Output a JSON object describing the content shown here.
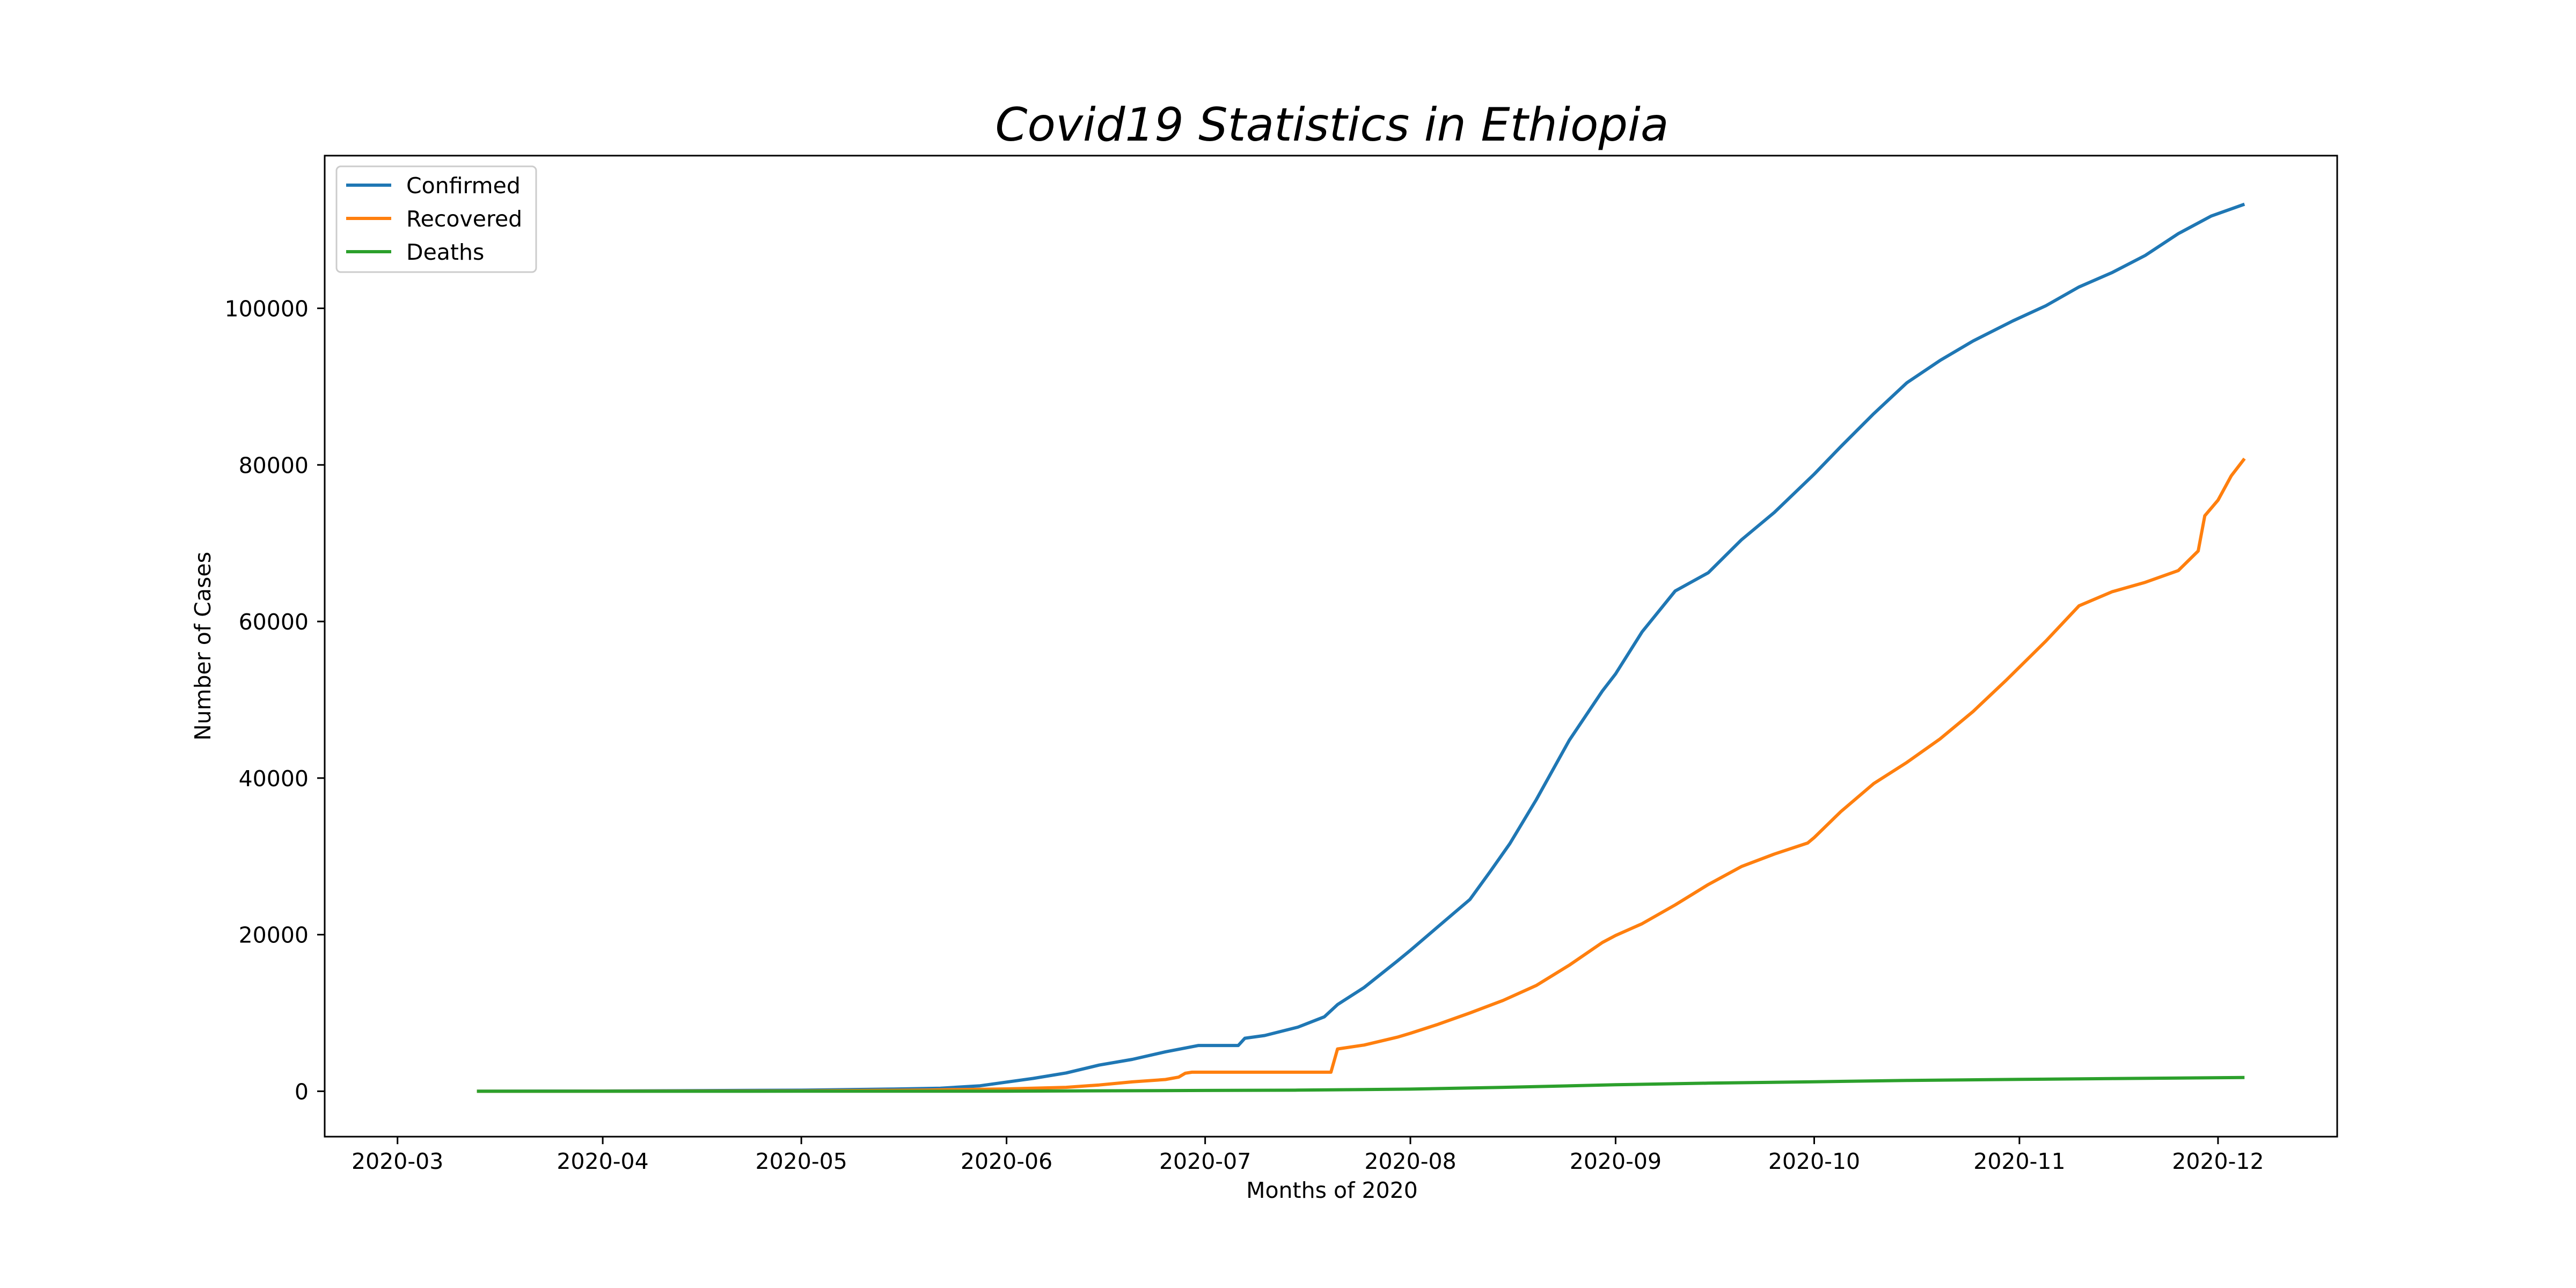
{
  "chart_data": {
    "type": "line",
    "title": "Covid19 Statistics in Ethiopia",
    "xlabel": "Months of 2020",
    "ylabel": "Number of Cases",
    "x_tick_labels": [
      "2020-03",
      "2020-04",
      "2020-05",
      "2020-06",
      "2020-07",
      "2020-08",
      "2020-09",
      "2020-10",
      "2020-11",
      "2020-12"
    ],
    "x_tick_dates": [
      "2020-03-01",
      "2020-04-01",
      "2020-05-01",
      "2020-06-01",
      "2020-07-01",
      "2020-08-01",
      "2020-09-01",
      "2020-10-01",
      "2020-11-01",
      "2020-12-01"
    ],
    "y_ticks": [
      0,
      20000,
      40000,
      60000,
      80000,
      100000
    ],
    "xlim": [
      "2020-02-19",
      "2020-12-19"
    ],
    "ylim": [
      -5800,
      119500
    ],
    "grid": false,
    "legend_position": "top-left",
    "series": [
      {
        "name": "Confirmed",
        "color": "#1f77b4",
        "points": [
          [
            "2020-03-13",
            1
          ],
          [
            "2020-04-01",
            29
          ],
          [
            "2020-04-15",
            82
          ],
          [
            "2020-05-01",
            133
          ],
          [
            "2020-05-15",
            287
          ],
          [
            "2020-05-22",
            389
          ],
          [
            "2020-05-28",
            700
          ],
          [
            "2020-06-01",
            1172
          ],
          [
            "2020-06-05",
            1636
          ],
          [
            "2020-06-10",
            2336
          ],
          [
            "2020-06-15",
            3345
          ],
          [
            "2020-06-20",
            4070
          ],
          [
            "2020-06-25",
            5034
          ],
          [
            "2020-06-30",
            5846
          ],
          [
            "2020-07-05",
            5846
          ],
          [
            "2020-07-06",
            5846
          ],
          [
            "2020-07-07",
            6774
          ],
          [
            "2020-07-10",
            7120
          ],
          [
            "2020-07-15",
            8181
          ],
          [
            "2020-07-19",
            9503
          ],
          [
            "2020-07-21",
            11072
          ],
          [
            "2020-07-25",
            13248
          ],
          [
            "2020-07-30",
            16615
          ],
          [
            "2020-08-01",
            17999
          ],
          [
            "2020-08-05",
            20900
          ],
          [
            "2020-08-10",
            24500
          ],
          [
            "2020-08-13",
            28000
          ],
          [
            "2020-08-16",
            31600
          ],
          [
            "2020-08-20",
            37213
          ],
          [
            "2020-08-25",
            44829
          ],
          [
            "2020-08-30",
            51122
          ],
          [
            "2020-09-01",
            53304
          ],
          [
            "2020-09-05",
            58672
          ],
          [
            "2020-09-10",
            63888
          ],
          [
            "2020-09-15",
            66224
          ],
          [
            "2020-09-20",
            70422
          ],
          [
            "2020-09-25",
            73944
          ],
          [
            "2020-10-01",
            78819
          ],
          [
            "2020-10-05",
            82311
          ],
          [
            "2020-10-10",
            86544
          ],
          [
            "2020-10-15",
            90490
          ],
          [
            "2020-10-20",
            93336
          ],
          [
            "2020-10-25",
            95824
          ],
          [
            "2020-10-31",
            98391
          ],
          [
            "2020-11-05",
            100327
          ],
          [
            "2020-11-10",
            102729
          ],
          [
            "2020-11-15",
            104562
          ],
          [
            "2020-11-20",
            106753
          ],
          [
            "2020-11-25",
            109534
          ],
          [
            "2020-11-30",
            111796
          ],
          [
            "2020-12-05",
            113295
          ]
        ]
      },
      {
        "name": "Recovered",
        "color": "#ff7f0e",
        "points": [
          [
            "2020-03-13",
            0
          ],
          [
            "2020-04-01",
            5
          ],
          [
            "2020-05-01",
            50
          ],
          [
            "2020-05-20",
            150
          ],
          [
            "2020-06-01",
            300
          ],
          [
            "2020-06-10",
            500
          ],
          [
            "2020-06-15",
            800
          ],
          [
            "2020-06-20",
            1200
          ],
          [
            "2020-06-25",
            1500
          ],
          [
            "2020-06-27",
            1800
          ],
          [
            "2020-06-28",
            2300
          ],
          [
            "2020-06-29",
            2430
          ],
          [
            "2020-07-05",
            2430
          ],
          [
            "2020-07-15",
            2430
          ],
          [
            "2020-07-20",
            2430
          ],
          [
            "2020-07-21",
            5400
          ],
          [
            "2020-07-25",
            5900
          ],
          [
            "2020-07-30",
            6900
          ],
          [
            "2020-08-01",
            7400
          ],
          [
            "2020-08-05",
            8500
          ],
          [
            "2020-08-10",
            10000
          ],
          [
            "2020-08-15",
            11600
          ],
          [
            "2020-08-20",
            13500
          ],
          [
            "2020-08-25",
            16100
          ],
          [
            "2020-08-30",
            19000
          ],
          [
            "2020-09-01",
            19900
          ],
          [
            "2020-09-05",
            21400
          ],
          [
            "2020-09-10",
            23800
          ],
          [
            "2020-09-15",
            26400
          ],
          [
            "2020-09-20",
            28700
          ],
          [
            "2020-09-25",
            30300
          ],
          [
            "2020-09-30",
            31700
          ],
          [
            "2020-10-01",
            32400
          ],
          [
            "2020-10-05",
            35700
          ],
          [
            "2020-10-10",
            39300
          ],
          [
            "2020-10-15",
            42000
          ],
          [
            "2020-10-20",
            45000
          ],
          [
            "2020-10-25",
            48500
          ],
          [
            "2020-10-30",
            52500
          ],
          [
            "2020-11-05",
            57500
          ],
          [
            "2020-11-10",
            62000
          ],
          [
            "2020-11-15",
            63800
          ],
          [
            "2020-11-20",
            65000
          ],
          [
            "2020-11-25",
            66500
          ],
          [
            "2020-11-28",
            69000
          ],
          [
            "2020-11-29",
            73500
          ],
          [
            "2020-12-01",
            75500
          ],
          [
            "2020-12-03",
            78600
          ],
          [
            "2020-12-05",
            80800
          ]
        ]
      },
      {
        "name": "Deaths",
        "color": "#2ca02c",
        "points": [
          [
            "2020-03-13",
            0
          ],
          [
            "2020-04-01",
            0
          ],
          [
            "2020-05-01",
            3
          ],
          [
            "2020-06-01",
            12
          ],
          [
            "2020-07-01",
            103
          ],
          [
            "2020-07-15",
            140
          ],
          [
            "2020-08-01",
            274
          ],
          [
            "2020-08-15",
            500
          ],
          [
            "2020-09-01",
            830
          ],
          [
            "2020-09-15",
            1035
          ],
          [
            "2020-10-01",
            1214
          ],
          [
            "2020-10-15",
            1380
          ],
          [
            "2020-11-01",
            1512
          ],
          [
            "2020-11-15",
            1620
          ],
          [
            "2020-12-05",
            1752
          ]
        ]
      }
    ]
  }
}
